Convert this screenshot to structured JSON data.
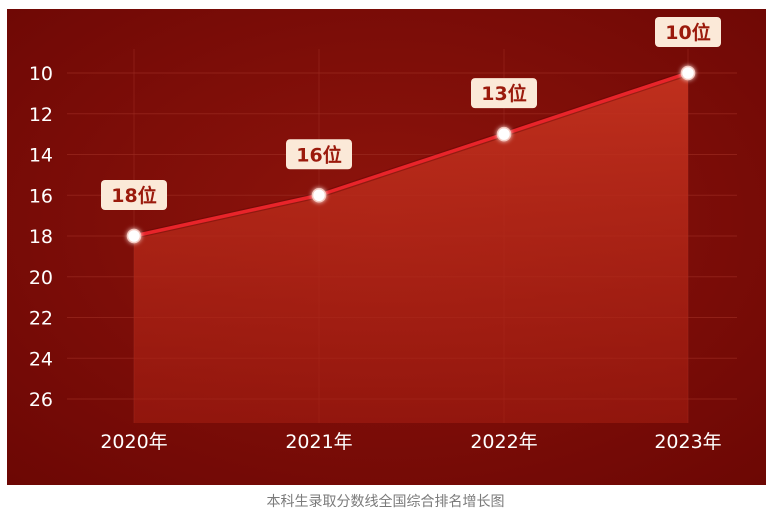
{
  "caption": "本科生录取分数线全国综合排名增长图",
  "colors": {
    "panel_bg": "#7a0a06",
    "area_fill": "#b3281a",
    "line": "#e8242a",
    "point": "#ffffff",
    "label_bg": "#fbe9d8",
    "label_text": "#9b1a0c",
    "grid": "#9a2a20"
  },
  "chart_data": {
    "type": "area",
    "categories": [
      "2020年",
      "2021年",
      "2022年",
      "2023年"
    ],
    "values": [
      18,
      16,
      13,
      10
    ],
    "data_labels": [
      "18位",
      "16位",
      "13位",
      "10位"
    ],
    "y_ticks": [
      "10",
      "12",
      "14",
      "16",
      "18",
      "20",
      "22",
      "24",
      "26"
    ],
    "ylim": [
      10,
      26
    ],
    "y_inverted": true,
    "grid": true,
    "title": "",
    "xlabel": "",
    "ylabel": ""
  }
}
